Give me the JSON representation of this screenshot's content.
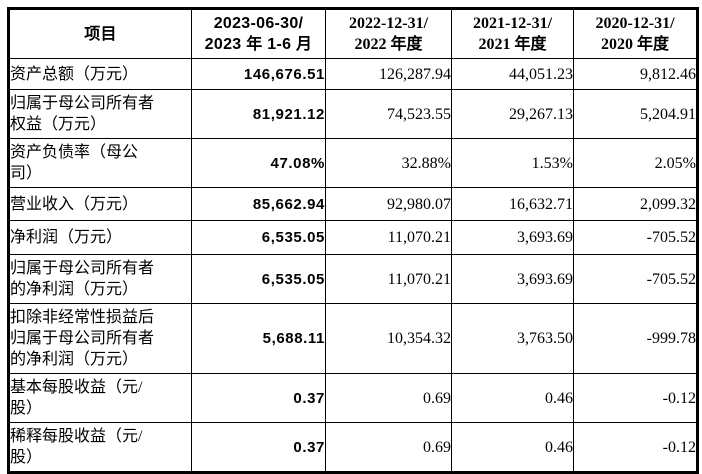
{
  "page": {
    "background_color": "#ffffff",
    "border_color": "#000000",
    "text_color": "#000000"
  },
  "table": {
    "header": {
      "item_col": "项目",
      "period_cols": [
        "2023-06-30/\n2023 年 1-6 月",
        "2022-12-31/\n2022 年度",
        "2021-12-31/\n2021 年度",
        "2020-12-31/\n2020 年度"
      ]
    },
    "rows": [
      {
        "label": "资产总额（万元）",
        "values": [
          "146,676.51",
          "126,287.94",
          "44,051.23",
          "9,812.46"
        ]
      },
      {
        "label": "归属于母公司所有者\n权益（万元）",
        "values": [
          "81,921.12",
          "74,523.55",
          "29,267.13",
          "5,204.91"
        ]
      },
      {
        "label": "资产负债率（母公\n司）",
        "values": [
          "47.08%",
          "32.88%",
          "1.53%",
          "2.05%"
        ]
      },
      {
        "label": "营业收入（万元）",
        "values": [
          "85,662.94",
          "92,980.07",
          "16,632.71",
          "2,099.32"
        ]
      },
      {
        "label": "净利润（万元）",
        "values": [
          "6,535.05",
          "11,070.21",
          "3,693.69",
          "-705.52"
        ]
      },
      {
        "label": "归属于母公司所有者\n的净利润（万元）",
        "values": [
          "6,535.05",
          "11,070.21",
          "3,693.69",
          "-705.52"
        ]
      },
      {
        "label": "扣除非经常性损益后\n归属于母公司所有者\n的净利润（万元）",
        "values": [
          "5,688.11",
          "10,354.32",
          "3,763.50",
          "-999.78"
        ]
      },
      {
        "label": "基本每股收益（元/\n股）",
        "values": [
          "0.37",
          "0.69",
          "0.46",
          "-0.12"
        ]
      },
      {
        "label": "稀释每股收益（元/\n股）",
        "values": [
          "0.37",
          "0.69",
          "0.46",
          "-0.12"
        ]
      }
    ]
  }
}
